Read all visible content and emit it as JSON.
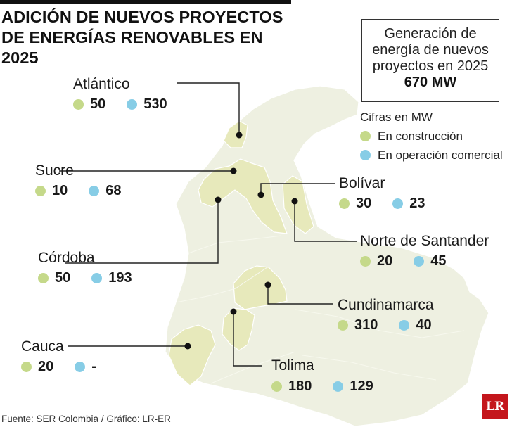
{
  "title_line1": "ADICIÓN DE NUEVOS PROYECTOS",
  "title_line2": "DE ENERGÍAS RENOVABLES EN 2025",
  "summary": {
    "line1": "Generación de",
    "line2": "energía de nuevos",
    "line3": "proyectos en 2025",
    "total": "670 MW"
  },
  "legend": {
    "heading": "Cifras en MW",
    "construction": "En construcción",
    "operation": "En operación comercial"
  },
  "colors": {
    "construction": "#c5d98a",
    "operation": "#87cde6",
    "map_base": "#eef0e1",
    "map_highlight": "#e7e9bb"
  },
  "departments": {
    "atlantico": {
      "name": "Atlántico",
      "construction": "50",
      "operation": "530"
    },
    "sucre": {
      "name": "Sucre",
      "construction": "10",
      "operation": "68"
    },
    "bolivar": {
      "name": "Bolívar",
      "construction": "30",
      "operation": "23"
    },
    "norte_santander": {
      "name": "Norte de Santander",
      "construction": "20",
      "operation": "45"
    },
    "cordoba": {
      "name": "Córdoba",
      "construction": "50",
      "operation": "193"
    },
    "cundinamarca": {
      "name": "Cundinamarca",
      "construction": "310",
      "operation": "40"
    },
    "cauca": {
      "name": "Cauca",
      "construction": "20",
      "operation": "-"
    },
    "tolima": {
      "name": "Tolima",
      "construction": "180",
      "operation": "129"
    }
  },
  "source": "Fuente: SER Colombia / Gráfico: LR-ER",
  "logo": "LR"
}
